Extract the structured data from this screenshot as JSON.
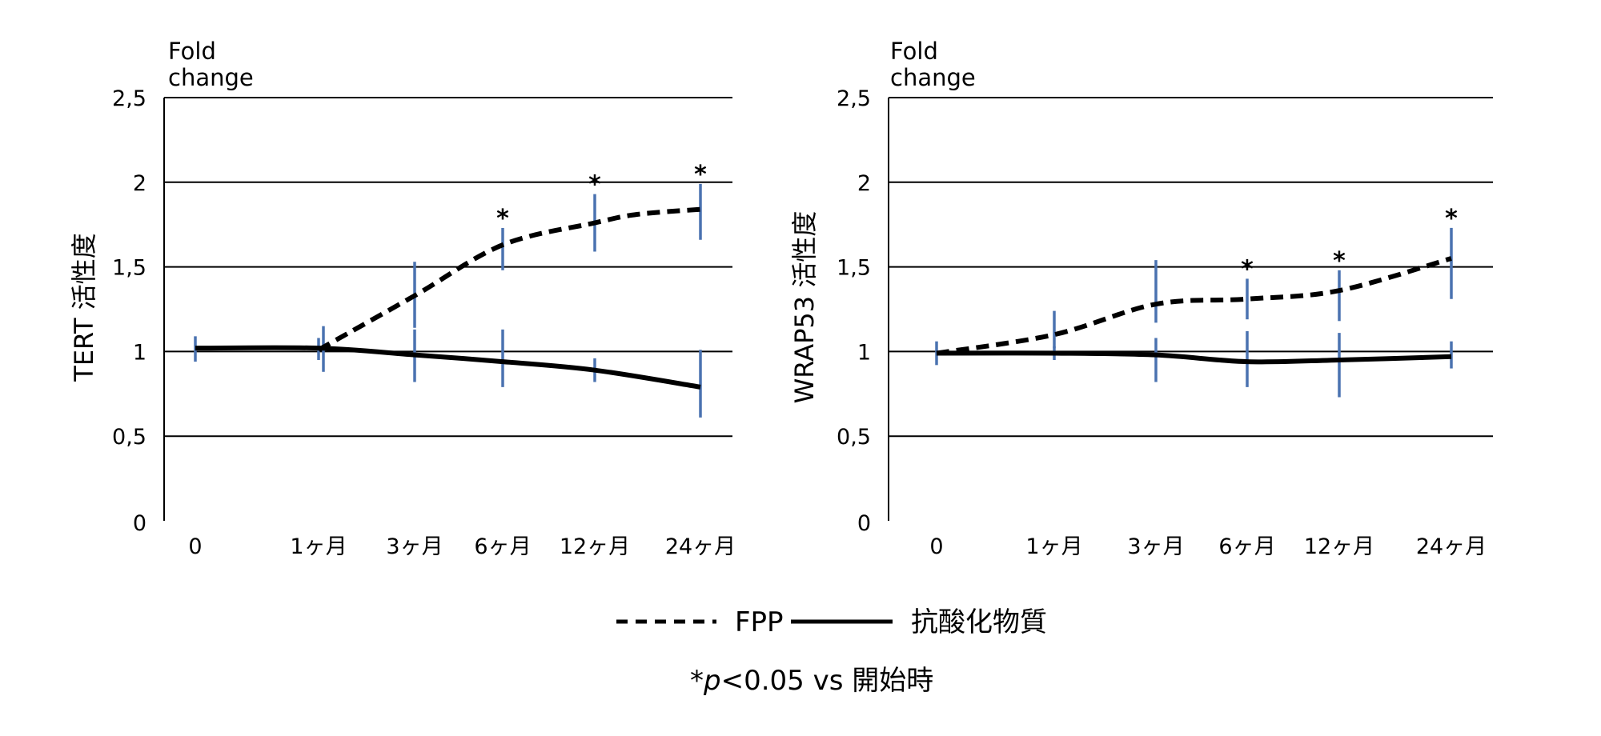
{
  "chart_data": [
    {
      "type": "line",
      "title": "Fold change",
      "title_lines": [
        "Fold",
        "change"
      ],
      "ylabel": "TERT 活性度",
      "categories": [
        "0",
        "1ヶ月",
        "3ヶ月",
        "6ヶ月",
        "12ヶ月",
        "24ヶ月"
      ],
      "ylim": [
        0,
        2.5
      ],
      "yticks": [
        "0",
        "0,5",
        "1",
        "1,5",
        "2",
        "2,5"
      ],
      "grid": true,
      "series": [
        {
          "name": "FPP",
          "style": "dashed",
          "points": [
            {
              "x": 1,
              "y": 1.01
            },
            {
              "x": 2,
              "y": 1.33
            },
            {
              "x": 3,
              "y": 1.63,
              "sig": "*"
            },
            {
              "x": 4,
              "y": 1.76,
              "sig": "*"
            },
            {
              "x": 4.4,
              "y": 1.81
            },
            {
              "x": 5,
              "y": 1.84,
              "sig": "*"
            }
          ],
          "error_bars": [
            {
              "x": 1,
              "low": 0.95,
              "high": 1.08
            },
            {
              "x": 2,
              "low": 1.14,
              "high": 1.53
            },
            {
              "x": 3,
              "low": 1.48,
              "high": 1.73
            },
            {
              "x": 4,
              "low": 1.59,
              "high": 1.93
            },
            {
              "x": 5,
              "low": 1.66,
              "high": 1.99
            }
          ]
        },
        {
          "name": "抗酸化物質",
          "style": "solid",
          "points": [
            {
              "x": 0,
              "y": 1.02
            },
            {
              "x": 1,
              "y": 1.02
            },
            {
              "x": 2,
              "y": 0.98
            },
            {
              "x": 3,
              "y": 0.94
            },
            {
              "x": 4,
              "y": 0.89
            },
            {
              "x": 5,
              "y": 0.79
            }
          ],
          "error_bars": [
            {
              "x": 0,
              "low": 0.94,
              "high": 1.09
            },
            {
              "x": 1.05,
              "low": 0.88,
              "high": 1.15
            },
            {
              "x": 2,
              "low": 0.82,
              "high": 1.13
            },
            {
              "x": 3,
              "low": 0.79,
              "high": 1.13
            },
            {
              "x": 4,
              "low": 0.82,
              "high": 0.96
            },
            {
              "x": 5,
              "low": 0.61,
              "high": 1.01
            }
          ]
        }
      ]
    },
    {
      "type": "line",
      "title": "Fold change",
      "title_lines": [
        "Fold",
        "change"
      ],
      "ylabel": "WRAP53 活性度",
      "categories": [
        "0",
        "1ヶ月",
        "3ヶ月",
        "6ヶ月",
        "12ヶ月",
        "24ヶ月"
      ],
      "ylim": [
        0,
        2.5
      ],
      "yticks": [
        "0",
        "0,5",
        "1",
        "1,5",
        "2",
        "2,5"
      ],
      "grid": true,
      "series": [
        {
          "name": "FPP",
          "style": "dashed",
          "points": [
            {
              "x": 0,
              "y": 0.99
            },
            {
              "x": 1,
              "y": 1.1
            },
            {
              "x": 2,
              "y": 1.28
            },
            {
              "x": 3,
              "y": 1.31,
              "sig": "*"
            },
            {
              "x": 4,
              "y": 1.36,
              "sig": "*"
            },
            {
              "x": 5,
              "y": 1.55,
              "sig": "*"
            }
          ],
          "error_bars": [
            {
              "x": 1,
              "low": 1.02,
              "high": 1.24
            },
            {
              "x": 2,
              "low": 1.17,
              "high": 1.54
            },
            {
              "x": 3,
              "low": 1.19,
              "high": 1.43
            },
            {
              "x": 4,
              "low": 1.18,
              "high": 1.48
            },
            {
              "x": 5,
              "low": 1.31,
              "high": 1.73
            }
          ]
        },
        {
          "name": "抗酸化物質",
          "style": "solid",
          "points": [
            {
              "x": 0,
              "y": 0.99
            },
            {
              "x": 1,
              "y": 0.99
            },
            {
              "x": 2,
              "y": 0.98
            },
            {
              "x": 3,
              "y": 0.94
            },
            {
              "x": 4,
              "y": 0.95
            },
            {
              "x": 5,
              "y": 0.97
            }
          ],
          "error_bars": [
            {
              "x": 0,
              "low": 0.92,
              "high": 1.06
            },
            {
              "x": 1,
              "low": 0.95,
              "high": 1.03
            },
            {
              "x": 2,
              "low": 0.82,
              "high": 1.08
            },
            {
              "x": 3,
              "low": 0.79,
              "high": 1.12
            },
            {
              "x": 4,
              "low": 0.73,
              "high": 1.11
            },
            {
              "x": 5,
              "low": 0.9,
              "high": 1.06
            }
          ]
        }
      ]
    }
  ],
  "legend": {
    "items": [
      {
        "label": "FPP",
        "style": "dashed"
      },
      {
        "label": "抗酸化物質",
        "style": "solid"
      }
    ]
  },
  "footnote": {
    "star": "*",
    "p": "p",
    "rest": "<0.05 vs 開始時"
  },
  "colors": {
    "error_bar": "#4a72b0",
    "line": "#000000",
    "grid": "#000000"
  }
}
